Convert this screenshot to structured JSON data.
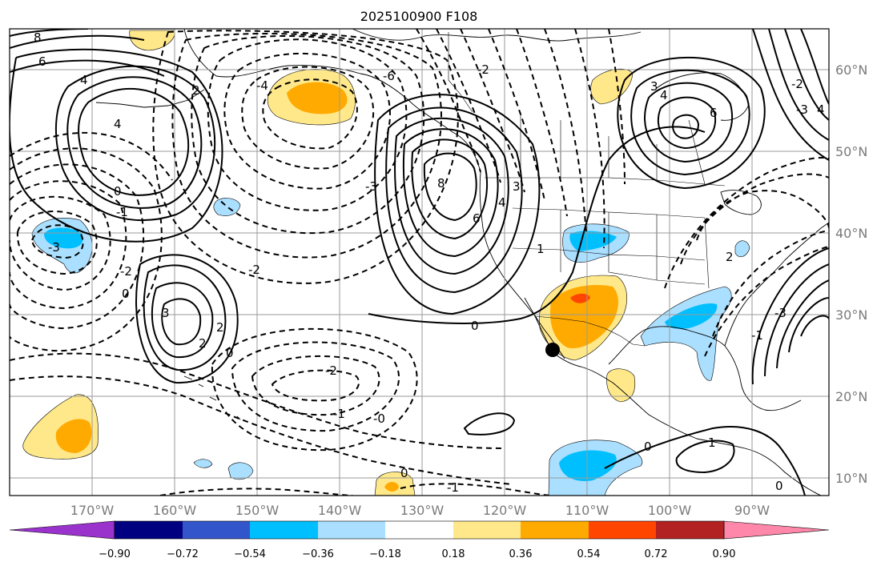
{
  "title": "2025100900 F108",
  "map": {
    "lon_labels": [
      "170°W",
      "160°W",
      "150°W",
      "140°W",
      "130°W",
      "120°W",
      "110°W",
      "100°W",
      "90°W"
    ],
    "lat_labels": [
      "60°N",
      "50°N",
      "40°N",
      "30°N",
      "20°N",
      "10°N"
    ],
    "contour_labels": [
      {
        "id": "c1",
        "text": "8"
      },
      {
        "id": "c2",
        "text": "6"
      },
      {
        "id": "c3",
        "text": "4"
      },
      {
        "id": "c4",
        "text": "4"
      },
      {
        "id": "c5",
        "text": "2"
      },
      {
        "id": "c6",
        "text": "0"
      },
      {
        "id": "c7",
        "text": "-1"
      },
      {
        "id": "c8",
        "text": "-3"
      },
      {
        "id": "c9",
        "text": "-2"
      },
      {
        "id": "c10",
        "text": "0"
      },
      {
        "id": "c11",
        "text": "3"
      },
      {
        "id": "c12",
        "text": "2"
      },
      {
        "id": "c13",
        "text": "2"
      },
      {
        "id": "c14",
        "text": "0"
      },
      {
        "id": "c15",
        "text": "-4"
      },
      {
        "id": "c16",
        "text": "-3"
      },
      {
        "id": "c17",
        "text": "-6"
      },
      {
        "id": "c18",
        "text": "-2"
      },
      {
        "id": "c19",
        "text": "8"
      },
      {
        "id": "c20",
        "text": "6"
      },
      {
        "id": "c21",
        "text": "4"
      },
      {
        "id": "c22",
        "text": "3"
      },
      {
        "id": "c23",
        "text": "1"
      },
      {
        "id": "c24",
        "text": "0"
      },
      {
        "id": "c25",
        "text": "-2"
      },
      {
        "id": "c26",
        "text": "-1"
      },
      {
        "id": "c27",
        "text": "-0"
      },
      {
        "id": "c28",
        "text": "-2"
      },
      {
        "id": "c29",
        "text": "0"
      },
      {
        "id": "c30",
        "text": "-1"
      },
      {
        "id": "c31",
        "text": "0"
      },
      {
        "id": "c32",
        "text": "1"
      },
      {
        "id": "c33",
        "text": "0"
      },
      {
        "id": "c34",
        "text": "3"
      },
      {
        "id": "c35",
        "text": "4"
      },
      {
        "id": "c36",
        "text": "6"
      },
      {
        "id": "c37",
        "text": "-2"
      },
      {
        "id": "c38",
        "text": "-3"
      },
      {
        "id": "c39",
        "text": "4"
      },
      {
        "id": "c40",
        "text": "2"
      },
      {
        "id": "c41",
        "text": "-1"
      },
      {
        "id": "c42",
        "text": "-3"
      }
    ],
    "marker": "black dot near Baja California (~26°N, 114°W)"
  },
  "colorbar": {
    "ticks": [
      "−0.90",
      "−0.72",
      "−0.54",
      "−0.36",
      "−0.18",
      "0.18",
      "0.36",
      "0.54",
      "0.72",
      "0.90"
    ],
    "colors": [
      "#9933cc",
      "#000080",
      "#3355cc",
      "#00bfff",
      "#aadfff",
      "#ffffff",
      "#ffe88a",
      "#ffaa00",
      "#ff4500",
      "#b22222",
      "#ff88aa"
    ]
  }
}
